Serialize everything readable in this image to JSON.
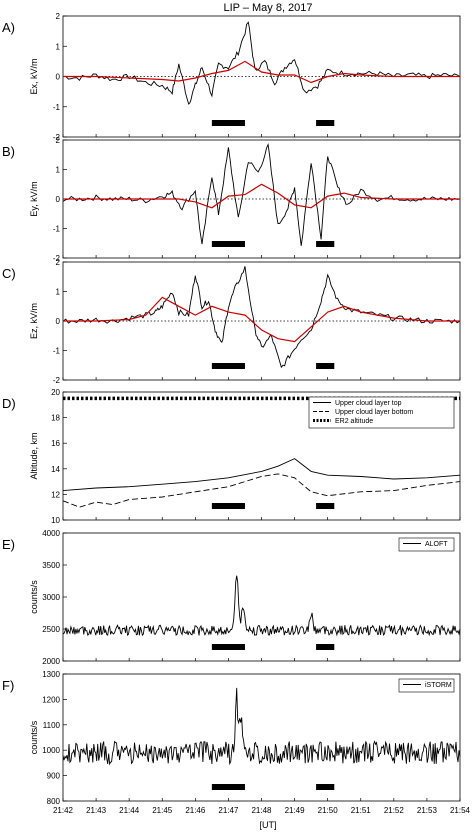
{
  "figure": {
    "title": "LIP – May 8, 2017",
    "xlabel": "[UT]",
    "x_ticks": [
      "21:42",
      "21:43",
      "21:44",
      "21:45",
      "21:46",
      "21:47",
      "21:48",
      "21:49",
      "21:50",
      "21:51",
      "21:52",
      "21:53",
      "21:54"
    ],
    "colors": {
      "signal": "#000000",
      "smoothed": "#cc0000",
      "zero_line": "#000000",
      "bar": "#000000"
    }
  },
  "chart_data": [
    {
      "panel": "A)",
      "type": "line",
      "ylabel": "Ex, kV/m",
      "ylim": [
        -2,
        2
      ],
      "yticks": [
        -2,
        -1,
        0,
        1,
        2
      ],
      "x_range_min": [
        0,
        12
      ],
      "zero_line": "dotted",
      "bars_min": [
        [
          4.5,
          5.5
        ],
        [
          7.65,
          8.2
        ]
      ],
      "series": [
        {
          "style": "black",
          "x": [
            0,
            0.5,
            1,
            1.5,
            2,
            2.5,
            3,
            3.3,
            3.5,
            3.8,
            4,
            4.2,
            4.5,
            4.7,
            5,
            5.3,
            5.6,
            5.8,
            6.1,
            6.4,
            6.7,
            7,
            7.3,
            7.7,
            8,
            8.5,
            9,
            9.5,
            10,
            10.5,
            11,
            11.5,
            12
          ],
          "y": [
            0,
            -0.05,
            0.05,
            -0.1,
            0,
            -0.2,
            -0.3,
            -0.5,
            0.4,
            -0.9,
            -0.3,
            0.3,
            -0.6,
            0.4,
            0.3,
            0.8,
            1.8,
            0.2,
            0.5,
            -0.2,
            0.3,
            0.6,
            -0.5,
            -0.3,
            0.2,
            0.1,
            0.1,
            0.1,
            0,
            0.05,
            0,
            0.05,
            0
          ]
        },
        {
          "style": "red",
          "x": [
            0,
            1,
            2,
            3,
            3.5,
            4,
            4.5,
            5,
            5.5,
            6,
            6.5,
            7,
            7.5,
            8,
            8.5,
            9,
            10,
            11,
            12
          ],
          "y": [
            0,
            0,
            -0.05,
            -0.1,
            -0.15,
            -0.05,
            0.1,
            0.2,
            0.5,
            0.15,
            0.05,
            0.05,
            -0.2,
            0,
            0.1,
            0.05,
            0,
            0,
            0
          ]
        }
      ]
    },
    {
      "panel": "B)",
      "type": "line",
      "ylabel": "Ey, kV/m",
      "ylim": [
        -2,
        2
      ],
      "yticks": [
        -2,
        -1,
        0,
        1,
        2
      ],
      "zero_line": "dotted",
      "bars_min": [
        [
          4.5,
          5.5
        ],
        [
          7.65,
          8.2
        ]
      ],
      "series": [
        {
          "style": "black",
          "x": [
            0,
            0.5,
            1,
            1.5,
            2,
            2.5,
            3,
            3.3,
            3.6,
            4,
            4.2,
            4.5,
            4.7,
            5,
            5.3,
            5.6,
            5.9,
            6.2,
            6.5,
            6.8,
            7,
            7.2,
            7.5,
            7.8,
            8,
            8.3,
            8.6,
            9,
            9.5,
            10,
            10.5,
            11,
            11.5,
            12
          ],
          "y": [
            0,
            0,
            0.05,
            0,
            0,
            -0.05,
            0.1,
            0.2,
            -0.3,
            0.3,
            -1.6,
            0.8,
            -0.5,
            1.7,
            -0.7,
            1.3,
            0.9,
            1.8,
            -0.9,
            -0.3,
            0.4,
            -1.6,
            1.3,
            -1.3,
            1.5,
            0.4,
            -0.2,
            0.3,
            0,
            0.05,
            0,
            0,
            0,
            0
          ]
        },
        {
          "style": "red",
          "x": [
            0,
            1,
            2,
            3,
            3.5,
            4,
            4.5,
            5,
            5.5,
            6,
            6.5,
            7,
            7.5,
            8,
            8.5,
            9,
            10,
            11,
            12
          ],
          "y": [
            0,
            0,
            0,
            0,
            0,
            -0.1,
            -0.3,
            0.1,
            0.15,
            0.5,
            0.2,
            -0.2,
            -0.3,
            0.1,
            0.2,
            0.05,
            0,
            0,
            0
          ]
        }
      ]
    },
    {
      "panel": "C)",
      "type": "line",
      "ylabel": "Ez, kV/m",
      "ylim": [
        -2,
        2
      ],
      "yticks": [
        -2,
        -1,
        0,
        1,
        2
      ],
      "zero_line": "dotted",
      "bars_min": [
        [
          4.5,
          5.5
        ],
        [
          7.65,
          8.2
        ]
      ],
      "series": [
        {
          "style": "black",
          "x": [
            0,
            0.5,
            1,
            1.5,
            2,
            2.5,
            2.8,
            3,
            3.3,
            3.5,
            3.8,
            4,
            4.2,
            4.4,
            4.6,
            4.8,
            5,
            5.2,
            5.5,
            5.8,
            6,
            6.3,
            6.6,
            6.9,
            7.2,
            7.5,
            7.8,
            8,
            8.3,
            8.6,
            9,
            9.5,
            10,
            10.5,
            11,
            11.5,
            12
          ],
          "y": [
            0,
            0,
            0.05,
            0,
            0.1,
            0.2,
            0.3,
            0.5,
            1.0,
            0.3,
            0.2,
            1.6,
            0.5,
            0.7,
            -0.3,
            -0.8,
            0.5,
            1.1,
            1.8,
            -0.3,
            -0.9,
            -0.5,
            -1.6,
            -1.1,
            -0.6,
            -0.3,
            0.7,
            1.5,
            0.7,
            0.4,
            0.3,
            0.2,
            0.1,
            0.05,
            0,
            0,
            0
          ]
        },
        {
          "style": "red",
          "x": [
            0,
            1,
            2,
            2.5,
            3,
            3.5,
            4,
            4.5,
            5,
            5.5,
            6,
            6.5,
            7,
            7.5,
            8,
            8.5,
            9,
            10,
            11,
            12
          ],
          "y": [
            0,
            0,
            0.05,
            0.2,
            0.8,
            0.5,
            0.2,
            0.5,
            0.3,
            0.2,
            -0.3,
            -0.6,
            -0.7,
            -0.2,
            0.3,
            0.5,
            0.3,
            0.1,
            0,
            0
          ]
        }
      ]
    },
    {
      "panel": "D)",
      "type": "line",
      "ylabel": "Altitude, km",
      "ylim": [
        10,
        20
      ],
      "yticks": [
        10,
        12,
        14,
        16,
        18,
        20
      ],
      "legend": [
        "Upper cloud layer top",
        "Upper cloud layer bottom",
        "ER2 altitude"
      ],
      "legend_placement": "top-right",
      "bars_min": [
        [
          4.5,
          5.5
        ],
        [
          7.65,
          8.2
        ]
      ],
      "series": [
        {
          "name": "Upper cloud layer top",
          "style": "solid",
          "x": [
            0,
            1,
            2,
            3,
            4,
            5,
            6,
            6.5,
            7,
            7.5,
            8,
            9,
            10,
            11,
            12
          ],
          "y": [
            12.3,
            12.5,
            12.6,
            12.8,
            13,
            13.3,
            13.8,
            14.2,
            14.8,
            13.8,
            13.5,
            13.4,
            13.2,
            13.3,
            13.5
          ]
        },
        {
          "name": "Upper cloud layer bottom",
          "style": "dashed",
          "x": [
            0,
            0.5,
            1,
            1.5,
            2,
            3,
            4,
            5,
            6,
            6.5,
            7,
            7.5,
            8,
            9,
            10,
            11,
            12
          ],
          "y": [
            11.5,
            11.0,
            11.4,
            11.2,
            11.6,
            11.8,
            12.2,
            12.6,
            13.4,
            13.6,
            13.3,
            12.2,
            11.9,
            12.2,
            12.3,
            12.7,
            13.0
          ]
        },
        {
          "name": "ER2 altitude",
          "style": "thick-dotted",
          "x": [
            0,
            12
          ],
          "y": [
            19.5,
            19.5
          ]
        }
      ]
    },
    {
      "panel": "E)",
      "type": "line",
      "ylabel": "counts/s",
      "ylim": [
        2000,
        4000
      ],
      "yticks": [
        2000,
        2500,
        3000,
        3500,
        4000
      ],
      "legend": [
        "ALOFT"
      ],
      "legend_placement": "top-right",
      "bars_min": [
        [
          4.5,
          5.5
        ],
        [
          7.65,
          8.2
        ]
      ],
      "series": [
        {
          "name": "ALOFT",
          "style": "solid",
          "base": 2480,
          "noise": 80,
          "peaks": [
            [
              5.25,
              3650
            ],
            [
              5.45,
              3000
            ],
            [
              7.5,
              2750
            ]
          ]
        }
      ]
    },
    {
      "panel": "F)",
      "type": "line",
      "ylabel": "counts/s",
      "ylim": [
        800,
        1300
      ],
      "yticks": [
        800,
        900,
        1000,
        1100,
        1200,
        1300
      ],
      "legend": [
        "iSTORM"
      ],
      "legend_placement": "top-right",
      "bars_min": [
        [
          4.5,
          5.5
        ],
        [
          7.65,
          8.2
        ]
      ],
      "series": [
        {
          "name": "iSTORM",
          "style": "solid",
          "base": 990,
          "noise": 45,
          "peaks": [
            [
              5.25,
              1250
            ],
            [
              5.4,
              1150
            ]
          ]
        }
      ]
    }
  ]
}
